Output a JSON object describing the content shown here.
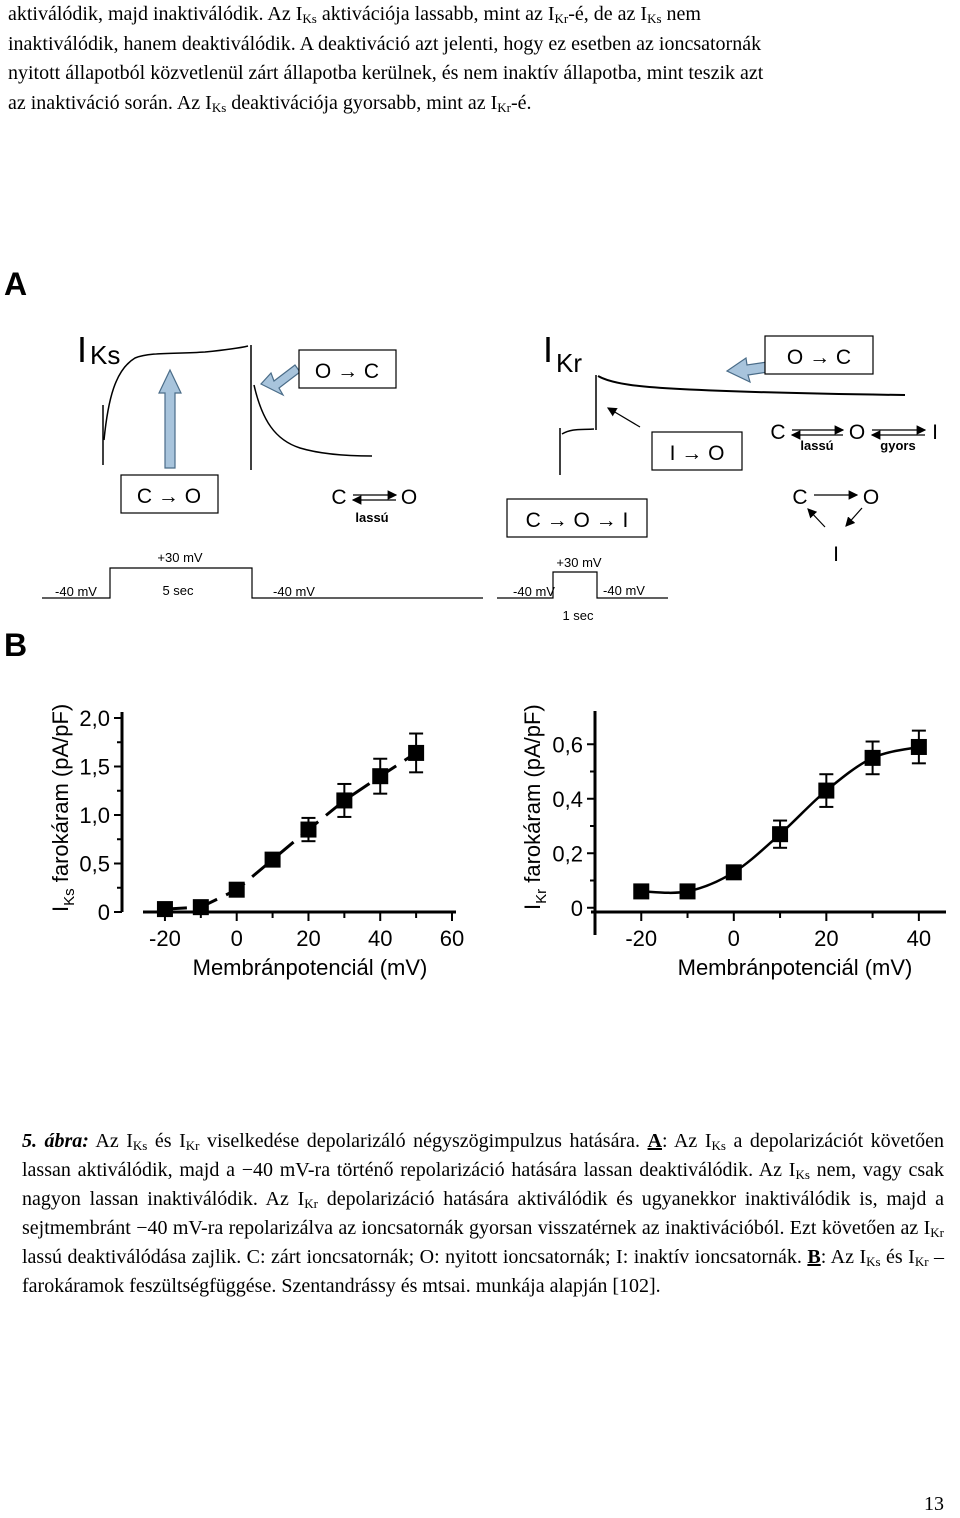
{
  "intro": {
    "l1a": "aktiválódik, majd inaktiválódik. Az I",
    "l1b": " aktivációja lassabb, mint az I",
    "l1c": "-é, de az I",
    "l1d": " nem",
    "l2": "inaktiválódik, hanem deaktiválódik. A deaktiváció azt jelenti, hogy ez esetben az ioncsatornák",
    "l3": "nyitott állapotból közvetlenül zárt állapotba kerülnek, és nem inaktív állapotba, mint teszik azt",
    "l4a": "az inaktiváció során. Az I",
    "l4b": " deaktivációja gyorsabb, mint az I",
    "l4c": "-é.",
    "ks": "Ks",
    "kr": "Kr"
  },
  "panel_a": {
    "letter": "A",
    "iks_main": "I",
    "iks_sub": "Ks",
    "ikr_main": "I",
    "ikr_sub": "Kr",
    "box_oc_left": "O → C",
    "box_co_left": "C → O",
    "slow_c": "C",
    "slow_o": "O",
    "slow_label": "lassú",
    "box_co_i": "C → O → I",
    "box_io": "I → O",
    "box_oc_right": "O → C",
    "chain_c": "C",
    "chain_o": "O",
    "chain_i": "I",
    "chain_slow": "lassú",
    "chain_fast": "gyors",
    "tri_c": "C",
    "tri_o": "O",
    "tri_i": "I",
    "protocol_left": {
      "hold1": "-40 mV",
      "step": "+30 mV",
      "duration": "5 sec",
      "hold2": "-40 mV"
    },
    "protocol_right": {
      "hold1": "-40 mV",
      "step": "+30 mV",
      "hold2": "-40 mV",
      "duration": "1 sec"
    }
  },
  "panel_b": {
    "letter": "B"
  },
  "chart_data": [
    {
      "type": "line",
      "ylabel_main": "I",
      "ylabel_sub": "Ks",
      "ylabel_rest": " farokáram (pA/pF)",
      "xlabel": "Membránpotenciál (mV)",
      "xticks": [
        "-20",
        "0",
        "20",
        "40",
        "60"
      ],
      "yticks": [
        "0",
        "0,5",
        "1,0",
        "1,5",
        "2,0"
      ],
      "xlim": [
        -25,
        60
      ],
      "ylim": [
        0,
        2.0
      ],
      "x": [
        -20,
        -10,
        0,
        10,
        20,
        30,
        40,
        50
      ],
      "y": [
        0.03,
        0.05,
        0.23,
        0.54,
        0.85,
        1.15,
        1.4,
        1.64
      ],
      "err": [
        0.0,
        0.0,
        0.0,
        0.0,
        0.12,
        0.17,
        0.18,
        0.2
      ]
    },
    {
      "type": "line",
      "ylabel_main": "I",
      "ylabel_sub": "Kr",
      "ylabel_rest": " farokáram (pA/pF)",
      "xlabel": "Membránpotenciál (mV)",
      "xticks": [
        "-20",
        "0",
        "20",
        "40"
      ],
      "yticks": [
        "0",
        "0,2",
        "0,4",
        "0,6"
      ],
      "xlim": [
        -30,
        45
      ],
      "ylim": [
        -0.1,
        0.7
      ],
      "x": [
        -20,
        -10,
        0,
        10,
        20,
        30,
        40
      ],
      "y": [
        0.06,
        0.06,
        0.13,
        0.27,
        0.43,
        0.55,
        0.59
      ],
      "err": [
        0.0,
        0.0,
        0.02,
        0.05,
        0.06,
        0.06,
        0.06
      ]
    }
  ],
  "caption": {
    "fig": "5. ábra:",
    "t1": " Az I",
    "t2": " és I",
    "t3": " viselkedése depolarizáló négyszögimpulzus hatására. ",
    "a_label": "A",
    "t4": ": Az I",
    "t5": " a depolarizációt követően lassan aktiválódik, majd a −40 mV-ra történő repolarizáció hatására lassan deaktiválódik. Az I",
    "t6": " nem, vagy csak nagyon lassan inaktiválódik. Az I",
    "t7": " depolarizáció hatására aktiválódik és ugyanekkor inaktiválódik is, majd a sejtmembránt −40 mV-ra repolarizálva az ioncsatornák gyorsan visszatérnek az inaktivációból. Ezt követően az I",
    "t8": " lassú deaktiválódása zajlik. C: zárt ioncsatornák; O: nyitott ioncsatornák; I: inaktív ioncsatornák. ",
    "b_label": "B",
    "t9": ": Az I",
    "t10": " és I",
    "t11": " –farokáramok feszültségfüggése. Szentandrássy és mtsai. munkája alapján [102].",
    "ks": "Ks",
    "kr": "Kr"
  },
  "page_number": "13"
}
